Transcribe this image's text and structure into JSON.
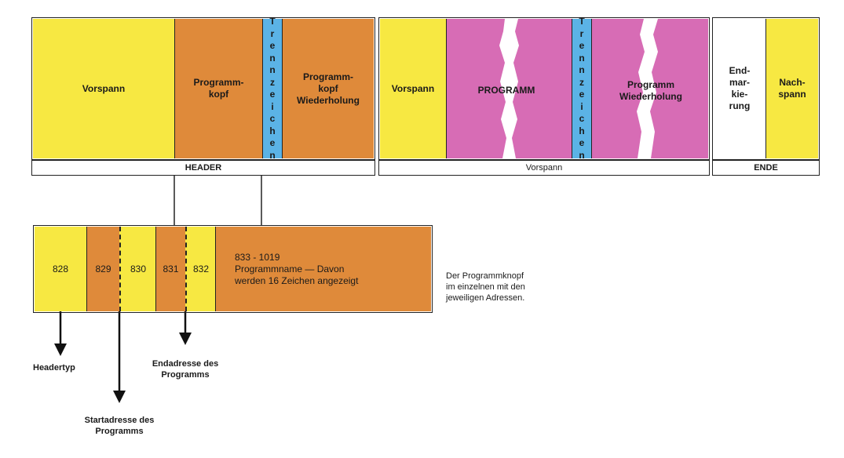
{
  "colors": {
    "yellow": "#f7e842",
    "orange": "#df8a3a",
    "blue": "#5bb3e6",
    "pink": "#d76cb5",
    "white": "#ffffff"
  },
  "top_row": {
    "header_section": {
      "vorspann": "Vorspann",
      "programmkopf": "Programm-\nkopf",
      "trennzeichen": [
        "T",
        "r",
        "e",
        "n",
        "n",
        "z",
        "e",
        "i",
        "c",
        "h",
        "e",
        "n"
      ],
      "kopf_wiederholung": "Programm-\nkopf\nWiederholung",
      "bar_label": "HEADER"
    },
    "program_section": {
      "vorspann": "Vorspann",
      "programm": "PROGRAMM",
      "trennzeichen": [
        "T",
        "r",
        "e",
        "n",
        "n",
        "z",
        "e",
        "i",
        "c",
        "h",
        "e",
        "n"
      ],
      "programm_wiederholung": "Programm\nWiederholung",
      "bar_label": "Vorspann"
    },
    "end_section": {
      "endmarkierung": "End-\nmar-\nkie-\nrung",
      "nachspann": "Nach-\nspann",
      "bar_label": "ENDE"
    }
  },
  "detail_row": {
    "cells": [
      "828",
      "829",
      "830",
      "831",
      "832"
    ],
    "name_cell": "833 - 1019\nProgrammname — Davon\nwerden 16 Zeichen angezeigt",
    "caption": "Der Programmknopf\nim einzelnen mit den\njeweiligen Adressen."
  },
  "annotations": {
    "headertyp": "Headertyp",
    "startadresse": "Startadresse des\nProgramms",
    "endadresse": "Endadresse des\nProgramms"
  }
}
